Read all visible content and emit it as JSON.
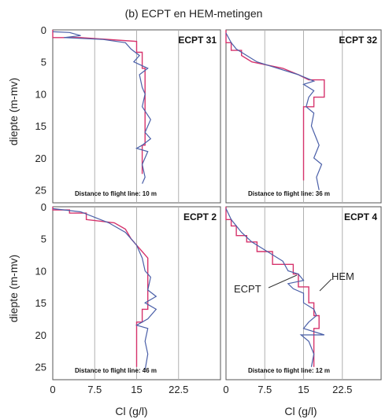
{
  "chart_data": {
    "type": "line",
    "title": "(b) ECPT en HEM-metingen",
    "xlabel": "Cl (g/l)",
    "ylabel": "diepte (m-mv)",
    "xlim": [
      0,
      30
    ],
    "ylim": [
      0,
      27
    ],
    "x_ticks": [
      "0",
      "7.5",
      "15",
      "22.5"
    ],
    "y_ticks": [
      "0",
      "5",
      "10",
      "15",
      "20",
      "25"
    ],
    "grid": "vertical lines at 7.5, 15, 22.5, 30",
    "series_colors": {
      "ECPT": "#4a5fa8",
      "HEM": "#d6336c"
    },
    "panels": [
      {
        "name": "ECPT 31",
        "distance_text": "Distance to flight line: 10 m",
        "HEM": [
          [
            0,
            0
          ],
          [
            0,
            1.2
          ],
          [
            5,
            1.2
          ],
          [
            15,
            1.8
          ],
          [
            15,
            3.5
          ],
          [
            16,
            3.5
          ],
          [
            16,
            6
          ],
          [
            16.5,
            6
          ],
          [
            16.5,
            18
          ],
          [
            16,
            18
          ],
          [
            16,
            22.5
          ]
        ],
        "ECPT": [
          [
            0,
            0.3
          ],
          [
            3,
            0.4
          ],
          [
            5,
            0.9
          ],
          [
            2,
            1.2
          ],
          [
            9,
            1.5
          ],
          [
            13,
            2
          ],
          [
            14,
            3
          ],
          [
            15.5,
            4
          ],
          [
            14.5,
            5
          ],
          [
            17,
            6
          ],
          [
            15.5,
            7
          ],
          [
            16,
            9
          ],
          [
            16.5,
            10
          ],
          [
            16,
            12
          ],
          [
            17.5,
            14
          ],
          [
            16.5,
            16
          ],
          [
            17.5,
            17
          ],
          [
            16,
            18
          ],
          [
            15,
            18.5
          ],
          [
            17,
            19
          ],
          [
            16,
            21
          ],
          [
            16.5,
            23
          ],
          [
            16,
            24
          ]
        ]
      },
      {
        "name": "ECPT 32",
        "distance_text": "Distance to flight line: 36 m",
        "HEM": [
          [
            0,
            0
          ],
          [
            0,
            2
          ],
          [
            1,
            2
          ],
          [
            1,
            3.2
          ],
          [
            3,
            3.2
          ],
          [
            3,
            4
          ],
          [
            5,
            5
          ],
          [
            11,
            6
          ],
          [
            14,
            7
          ],
          [
            16,
            7.8
          ],
          [
            19,
            7.8
          ],
          [
            19,
            10.5
          ],
          [
            17,
            10.5
          ],
          [
            17,
            12
          ],
          [
            15,
            12
          ],
          [
            15,
            23.5
          ]
        ],
        "ECPT": [
          [
            0,
            0.5
          ],
          [
            1,
            2
          ],
          [
            2,
            3
          ],
          [
            4,
            4
          ],
          [
            6,
            5
          ],
          [
            10,
            6
          ],
          [
            14,
            7
          ],
          [
            17,
            8
          ],
          [
            15,
            8.5
          ],
          [
            17,
            9.5
          ],
          [
            16,
            10.5
          ],
          [
            15.5,
            12
          ],
          [
            17,
            13
          ],
          [
            16.5,
            15
          ],
          [
            17.5,
            17
          ],
          [
            18,
            18
          ],
          [
            17,
            20
          ],
          [
            18.5,
            21
          ],
          [
            17.5,
            23
          ],
          [
            18,
            25
          ]
        ]
      },
      {
        "name": "ECPT 2",
        "distance_text": "Distance to flight line: 46 m",
        "HEM": [
          [
            0,
            0
          ],
          [
            0,
            0.5
          ],
          [
            3,
            0.5
          ],
          [
            3,
            1
          ],
          [
            6,
            1
          ],
          [
            6,
            2
          ],
          [
            11,
            2.5
          ],
          [
            13,
            3.5
          ],
          [
            14,
            5
          ],
          [
            15,
            6
          ],
          [
            16,
            7
          ],
          [
            17,
            8
          ],
          [
            17,
            16
          ],
          [
            16,
            16
          ],
          [
            16,
            18
          ],
          [
            15,
            18
          ],
          [
            15,
            25
          ]
        ],
        "ECPT": [
          [
            0,
            0.3
          ],
          [
            5,
            0.8
          ],
          [
            10,
            2.5
          ],
          [
            13,
            4
          ],
          [
            15,
            6
          ],
          [
            16,
            8
          ],
          [
            16.5,
            10
          ],
          [
            17.5,
            11
          ],
          [
            17,
            13
          ],
          [
            18.5,
            14
          ],
          [
            16.5,
            15
          ],
          [
            18.5,
            16
          ],
          [
            17,
            17.5
          ],
          [
            15,
            18.5
          ],
          [
            17,
            19
          ],
          [
            16.5,
            21
          ],
          [
            17,
            23
          ],
          [
            16.5,
            25.5
          ]
        ]
      },
      {
        "name": "ECPT 4",
        "distance_text": "Distance to flight line: 12 m",
        "HEM": [
          [
            0,
            0
          ],
          [
            0,
            2
          ],
          [
            1,
            2
          ],
          [
            1,
            3
          ],
          [
            2,
            3
          ],
          [
            2,
            4.5
          ],
          [
            4,
            4.5
          ],
          [
            4,
            5.5
          ],
          [
            6,
            5.5
          ],
          [
            6,
            7
          ],
          [
            9,
            7
          ],
          [
            9,
            9
          ],
          [
            13,
            9
          ],
          [
            13,
            10.5
          ],
          [
            14,
            10.5
          ],
          [
            14,
            12.5
          ],
          [
            16,
            12.5
          ],
          [
            16,
            15
          ],
          [
            17,
            15
          ],
          [
            17,
            17
          ],
          [
            18,
            17
          ],
          [
            18,
            19
          ],
          [
            17,
            19
          ],
          [
            17,
            25
          ]
        ],
        "ECPT": [
          [
            0,
            0.3
          ],
          [
            1,
            2
          ],
          [
            3,
            4
          ],
          [
            5,
            5.5
          ],
          [
            8,
            7
          ],
          [
            11,
            8.5
          ],
          [
            12,
            10
          ],
          [
            14,
            10.5
          ],
          [
            15,
            11.5
          ],
          [
            12,
            12
          ],
          [
            13,
            12.8
          ],
          [
            15,
            13.5
          ],
          [
            15,
            15
          ],
          [
            17,
            16
          ],
          [
            17.5,
            17
          ],
          [
            16,
            18
          ],
          [
            15,
            19
          ],
          [
            19,
            20
          ],
          [
            14.5,
            20
          ],
          [
            16,
            21
          ],
          [
            17,
            23
          ],
          [
            16.5,
            25
          ]
        ]
      }
    ],
    "annotations": [
      "ECPT",
      "HEM"
    ]
  }
}
